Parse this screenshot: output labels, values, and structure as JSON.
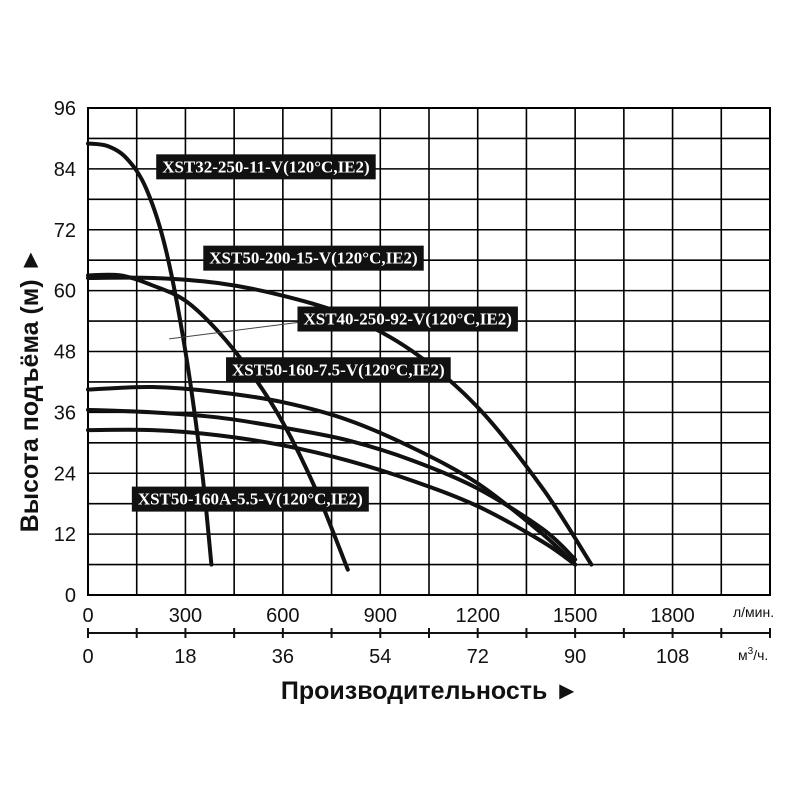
{
  "chart_data": {
    "type": "line",
    "ylabel": "Высота подъёма (м) ►",
    "xlabel": "Производительность ►",
    "x_unit_primary": "л/мин.",
    "x_unit_secondary_base": "м",
    "x_unit_secondary_sup": "3",
    "x_unit_secondary_tail": "/ч.",
    "xlim": [
      0,
      2100
    ],
    "ylim": [
      0,
      96
    ],
    "grid": true,
    "x_ticks_primary": [
      0,
      300,
      600,
      900,
      1200,
      1500,
      1800
    ],
    "x_ticks_secondary": [
      0,
      18,
      36,
      54,
      72,
      90,
      108
    ],
    "y_ticks": [
      0,
      12,
      24,
      36,
      48,
      60,
      72,
      84,
      96
    ],
    "series": [
      {
        "name": "XST32-250-11-V(120°C,IE2)",
        "x": [
          0,
          60,
          120,
          180,
          240,
          300,
          350,
          380
        ],
        "y": [
          89,
          88.5,
          86,
          80,
          68,
          48,
          25,
          6
        ]
      },
      {
        "name": "XST50-200-15-V(120°C,IE2)",
        "x": [
          0,
          200,
          400,
          600,
          800,
          1000,
          1200,
          1400,
          1550
        ],
        "y": [
          62.5,
          62.5,
          61.5,
          59,
          55,
          48,
          37,
          21,
          6
        ]
      },
      {
        "name": "XST40-250-92-V(120°C,IE2)",
        "x": [
          0,
          100,
          200,
          300,
          400,
          500,
          600,
          700,
          800
        ],
        "y": [
          63,
          63,
          61,
          58,
          52,
          44,
          34,
          21,
          5
        ]
      },
      {
        "name": "XST50-160-7.5-V(120°C,IE2)",
        "x": [
          0,
          200,
          400,
          600,
          800,
          1000,
          1200,
          1400,
          1500
        ],
        "y": [
          40.5,
          41,
          40,
          38,
          34.5,
          29,
          22,
          12,
          6
        ]
      },
      {
        "name": "XST50-160A-5.5-V(120°C,IE2)",
        "x": [
          0,
          200,
          400,
          600,
          800,
          1000,
          1200,
          1400,
          1500
        ],
        "y": [
          36.5,
          36,
          35,
          33,
          30.5,
          26.5,
          21,
          13,
          7
        ]
      },
      {
        "name": "",
        "x": [
          0,
          200,
          400,
          600,
          800,
          1000,
          1200,
          1400,
          1500
        ],
        "y": [
          32.5,
          32.5,
          31.5,
          29.5,
          26.5,
          22.5,
          17.5,
          10.5,
          6
        ]
      }
    ],
    "labels": [
      {
        "series": "XST32-250-11-V(120°C,IE2)",
        "text": "XST32-250-11-V(120°C,IE2)"
      },
      {
        "series": "XST50-200-15-V(120°C,IE2)",
        "text": "XST50-200-15-V(120°C,IE2)"
      },
      {
        "series": "XST40-250-92-V(120°C,IE2)",
        "text": "XST40-250-92-V(120°C,IE2)"
      },
      {
        "series": "XST50-160-7.5-V(120°C,IE2)",
        "text": "XST50-160-7.5-V(120°C,IE2)"
      },
      {
        "series": "XST50-160A-5.5-V(120°C,IE2)",
        "text": "XST50-160A-5.5-V(120°C,IE2)"
      }
    ],
    "colors": {
      "curve": "#111111",
      "grid": "#000000",
      "label_bg": "#111111",
      "label_text": "#ffffff"
    }
  }
}
